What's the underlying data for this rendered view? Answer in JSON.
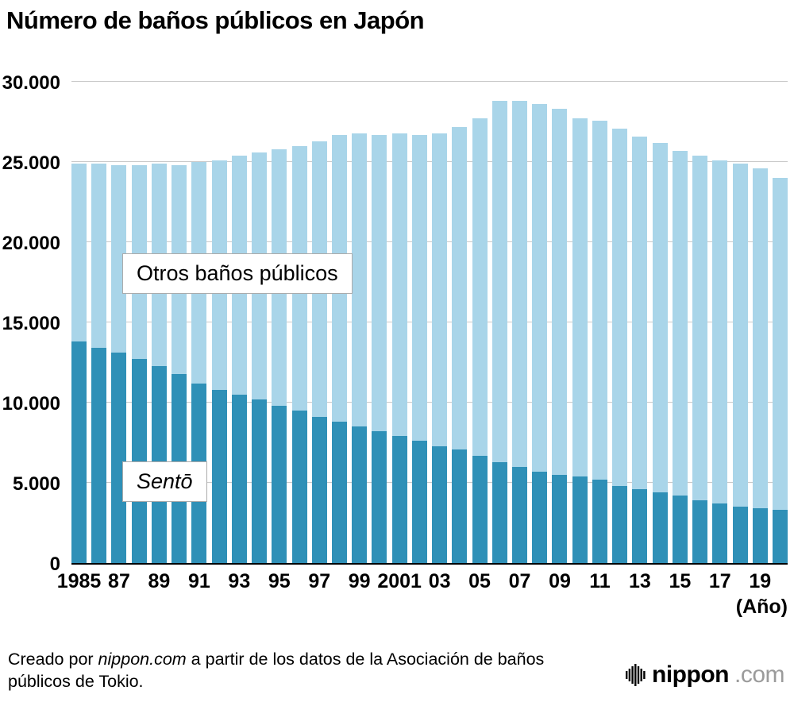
{
  "title": "Número de baños públicos en Japón",
  "chart_data": {
    "type": "bar",
    "stacked": true,
    "title": "Número de baños públicos en Japón",
    "xlabel": "(Año)",
    "ylabel": "",
    "ylim": [
      0,
      30000
    ],
    "grid": true,
    "x": [
      1985,
      1986,
      1987,
      1988,
      1989,
      1990,
      1991,
      1992,
      1993,
      1994,
      1995,
      1996,
      1997,
      1998,
      1999,
      2000,
      2001,
      2002,
      2003,
      2004,
      2005,
      2006,
      2007,
      2008,
      2009,
      2010,
      2011,
      2012,
      2013,
      2014,
      2015,
      2016,
      2017,
      2018,
      2019,
      2020
    ],
    "series": [
      {
        "name": "Sentō",
        "color": "#2f90b7",
        "values": [
          13800,
          13400,
          13100,
          12700,
          12300,
          11800,
          11200,
          10800,
          10500,
          10200,
          9800,
          9500,
          9100,
          8800,
          8500,
          8200,
          7900,
          7600,
          7300,
          7100,
          6700,
          6300,
          6000,
          5700,
          5500,
          5400,
          5200,
          4800,
          4600,
          4400,
          4200,
          3900,
          3700,
          3500,
          3400,
          3300
        ]
      },
      {
        "name": "Otros baños públicos",
        "color": "#a9d5e9",
        "values": [
          11100,
          11500,
          11700,
          12100,
          12600,
          13000,
          13800,
          14300,
          14900,
          15400,
          16000,
          16500,
          17200,
          17900,
          18300,
          18500,
          18900,
          19100,
          19500,
          20100,
          21000,
          22500,
          22800,
          22900,
          22800,
          22300,
          22400,
          22300,
          22000,
          21800,
          21500,
          21500,
          21400,
          21400,
          21200,
          20700
        ]
      }
    ],
    "yticks": [
      {
        "value": 0,
        "label": "0"
      },
      {
        "value": 5000,
        "label": "5.000"
      },
      {
        "value": 10000,
        "label": "10.000"
      },
      {
        "value": 15000,
        "label": "15.000"
      },
      {
        "value": 20000,
        "label": "20.000"
      },
      {
        "value": 25000,
        "label": "25.000"
      },
      {
        "value": 30000,
        "label": "30.000"
      }
    ],
    "xticks": [
      {
        "index": 0,
        "label": "1985"
      },
      {
        "index": 2,
        "label": "87"
      },
      {
        "index": 4,
        "label": "89"
      },
      {
        "index": 6,
        "label": "91"
      },
      {
        "index": 8,
        "label": "93"
      },
      {
        "index": 10,
        "label": "95"
      },
      {
        "index": 12,
        "label": "97"
      },
      {
        "index": 14,
        "label": "99"
      },
      {
        "index": 16,
        "label": "2001"
      },
      {
        "index": 18,
        "label": "03"
      },
      {
        "index": 20,
        "label": "05"
      },
      {
        "index": 22,
        "label": "07"
      },
      {
        "index": 24,
        "label": "09"
      },
      {
        "index": 26,
        "label": "11"
      },
      {
        "index": 28,
        "label": "13"
      },
      {
        "index": 30,
        "label": "15"
      },
      {
        "index": 32,
        "label": "17"
      },
      {
        "index": 34,
        "label": "19"
      }
    ],
    "x_axis_unit": "(Año)",
    "annotations": [
      {
        "text": "Otros baños públicos",
        "italic": false
      },
      {
        "text": "Sentō",
        "italic": true
      }
    ],
    "legend_position": "in-plot-boxes"
  },
  "footer": {
    "prefix": "Creado por ",
    "brand": "nippon.com",
    "suffix": " a partir de los datos de la Asociación de baños públicos de Tokio."
  },
  "logo": {
    "word": "nippon",
    "tld": ".com"
  }
}
